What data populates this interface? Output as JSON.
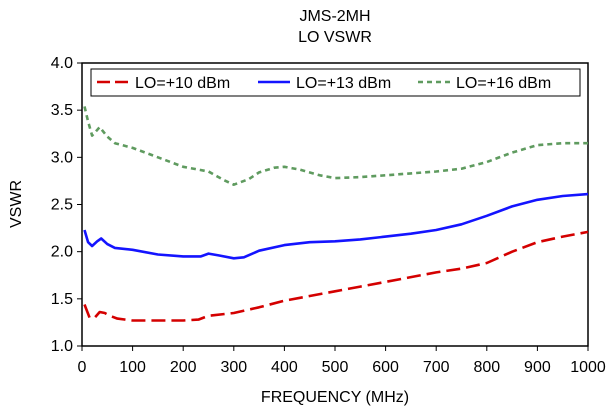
{
  "chart_data": {
    "type": "line",
    "title": "JMS-2MH",
    "subtitle": "LO VSWR",
    "xlabel": "FREQUENCY (MHz)",
    "ylabel": "VSWR",
    "xlim": [
      0,
      1000
    ],
    "ylim": [
      1.0,
      4.0
    ],
    "xticks": [
      "0",
      "100",
      "200",
      "300",
      "400",
      "500",
      "600",
      "700",
      "800",
      "900",
      "1000"
    ],
    "yticks": [
      "1.0",
      "1.5",
      "2.0",
      "2.5",
      "3.0",
      "3.5",
      "4.0"
    ],
    "grid": false,
    "legend_position": "top",
    "series": [
      {
        "name": "LO=+10 dBm",
        "color": "#d40000",
        "style": "long-dash",
        "points": [
          [
            5,
            1.44
          ],
          [
            15,
            1.3
          ],
          [
            25,
            1.3
          ],
          [
            35,
            1.36
          ],
          [
            45,
            1.35
          ],
          [
            55,
            1.32
          ],
          [
            70,
            1.29
          ],
          [
            100,
            1.27
          ],
          [
            150,
            1.27
          ],
          [
            200,
            1.27
          ],
          [
            230,
            1.28
          ],
          [
            250,
            1.32
          ],
          [
            300,
            1.35
          ],
          [
            350,
            1.41
          ],
          [
            400,
            1.48
          ],
          [
            450,
            1.53
          ],
          [
            500,
            1.58
          ],
          [
            550,
            1.63
          ],
          [
            600,
            1.68
          ],
          [
            650,
            1.73
          ],
          [
            700,
            1.78
          ],
          [
            750,
            1.82
          ],
          [
            800,
            1.88
          ],
          [
            850,
            2.0
          ],
          [
            900,
            2.1
          ],
          [
            950,
            2.16
          ],
          [
            1000,
            2.21
          ]
        ]
      },
      {
        "name": "LO=+13 dBm",
        "color": "#1414ff",
        "style": "solid",
        "points": [
          [
            5,
            2.23
          ],
          [
            12,
            2.1
          ],
          [
            20,
            2.06
          ],
          [
            30,
            2.11
          ],
          [
            38,
            2.14
          ],
          [
            50,
            2.08
          ],
          [
            65,
            2.04
          ],
          [
            100,
            2.02
          ],
          [
            150,
            1.97
          ],
          [
            200,
            1.95
          ],
          [
            235,
            1.95
          ],
          [
            250,
            1.98
          ],
          [
            270,
            1.96
          ],
          [
            300,
            1.93
          ],
          [
            320,
            1.94
          ],
          [
            350,
            2.01
          ],
          [
            400,
            2.07
          ],
          [
            450,
            2.1
          ],
          [
            500,
            2.11
          ],
          [
            550,
            2.13
          ],
          [
            600,
            2.16
          ],
          [
            650,
            2.19
          ],
          [
            700,
            2.23
          ],
          [
            750,
            2.29
          ],
          [
            800,
            2.38
          ],
          [
            850,
            2.48
          ],
          [
            900,
            2.55
          ],
          [
            950,
            2.59
          ],
          [
            1000,
            2.61
          ]
        ]
      },
      {
        "name": "LO=+16 dBm",
        "color": "#5f9b5f",
        "style": "short-dash",
        "points": [
          [
            5,
            3.54
          ],
          [
            12,
            3.38
          ],
          [
            20,
            3.23
          ],
          [
            25,
            3.26
          ],
          [
            35,
            3.32
          ],
          [
            50,
            3.22
          ],
          [
            65,
            3.15
          ],
          [
            100,
            3.1
          ],
          [
            150,
            3.0
          ],
          [
            200,
            2.9
          ],
          [
            250,
            2.85
          ],
          [
            280,
            2.76
          ],
          [
            300,
            2.71
          ],
          [
            330,
            2.77
          ],
          [
            350,
            2.84
          ],
          [
            380,
            2.89
          ],
          [
            400,
            2.9
          ],
          [
            430,
            2.87
          ],
          [
            470,
            2.81
          ],
          [
            500,
            2.78
          ],
          [
            550,
            2.79
          ],
          [
            600,
            2.81
          ],
          [
            650,
            2.83
          ],
          [
            700,
            2.85
          ],
          [
            750,
            2.88
          ],
          [
            800,
            2.95
          ],
          [
            850,
            3.05
          ],
          [
            900,
            3.13
          ],
          [
            950,
            3.15
          ],
          [
            1000,
            3.15
          ]
        ]
      }
    ]
  }
}
